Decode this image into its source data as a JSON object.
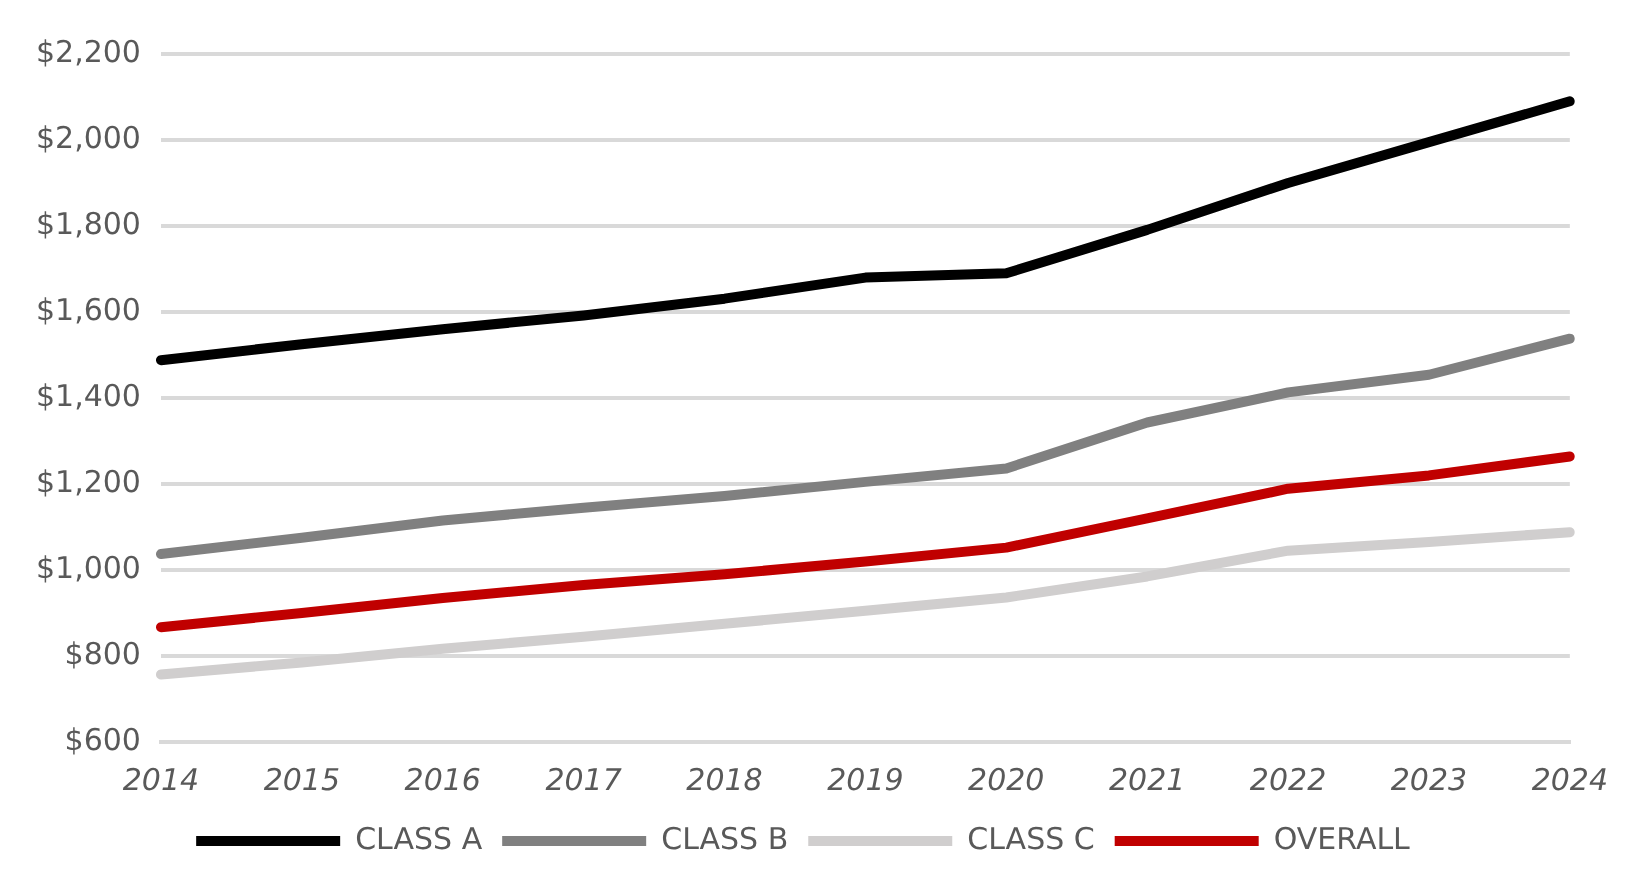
{
  "chart_data": {
    "type": "line",
    "categories": [
      "2014",
      "2015",
      "2016",
      "2017",
      "2018",
      "2019",
      "2020",
      "2021",
      "2022",
      "2023",
      "2024"
    ],
    "series": [
      {
        "name": "CLASS A",
        "color": "#000000",
        "values": [
          1488,
          1525,
          1560,
          1592,
          1631,
          1680,
          1690,
          1791,
          1900,
          1995,
          2090
        ]
      },
      {
        "name": "CLASS B",
        "color": "#808080",
        "values": [
          1037,
          1075,
          1115,
          1145,
          1172,
          1205,
          1236,
          1343,
          1413,
          1454,
          1538
        ]
      },
      {
        "name": "CLASS C",
        "color": "#d0cece",
        "values": [
          757,
          785,
          817,
          845,
          875,
          905,
          936,
          985,
          1045,
          1065,
          1088
        ]
      },
      {
        "name": "OVERALL",
        "color": "#c00000",
        "values": [
          867,
          900,
          935,
          965,
          990,
          1020,
          1052,
          1120,
          1189,
          1220,
          1264
        ]
      }
    ],
    "ylim": [
      600,
      2200
    ],
    "yticks": [
      {
        "value": 600,
        "label": "$600"
      },
      {
        "value": 800,
        "label": "$800"
      },
      {
        "value": 1000,
        "label": "$1,000"
      },
      {
        "value": 1200,
        "label": "$1,200"
      },
      {
        "value": 1400,
        "label": "$1,400"
      },
      {
        "value": 1600,
        "label": "$1,600"
      },
      {
        "value": 1800,
        "label": "$1,800"
      },
      {
        "value": 2000,
        "label": "$2,000"
      },
      {
        "value": 2200,
        "label": "$2,200"
      }
    ],
    "grid": "y",
    "legend": "bottom",
    "marker": "none",
    "line_style": "solid"
  }
}
